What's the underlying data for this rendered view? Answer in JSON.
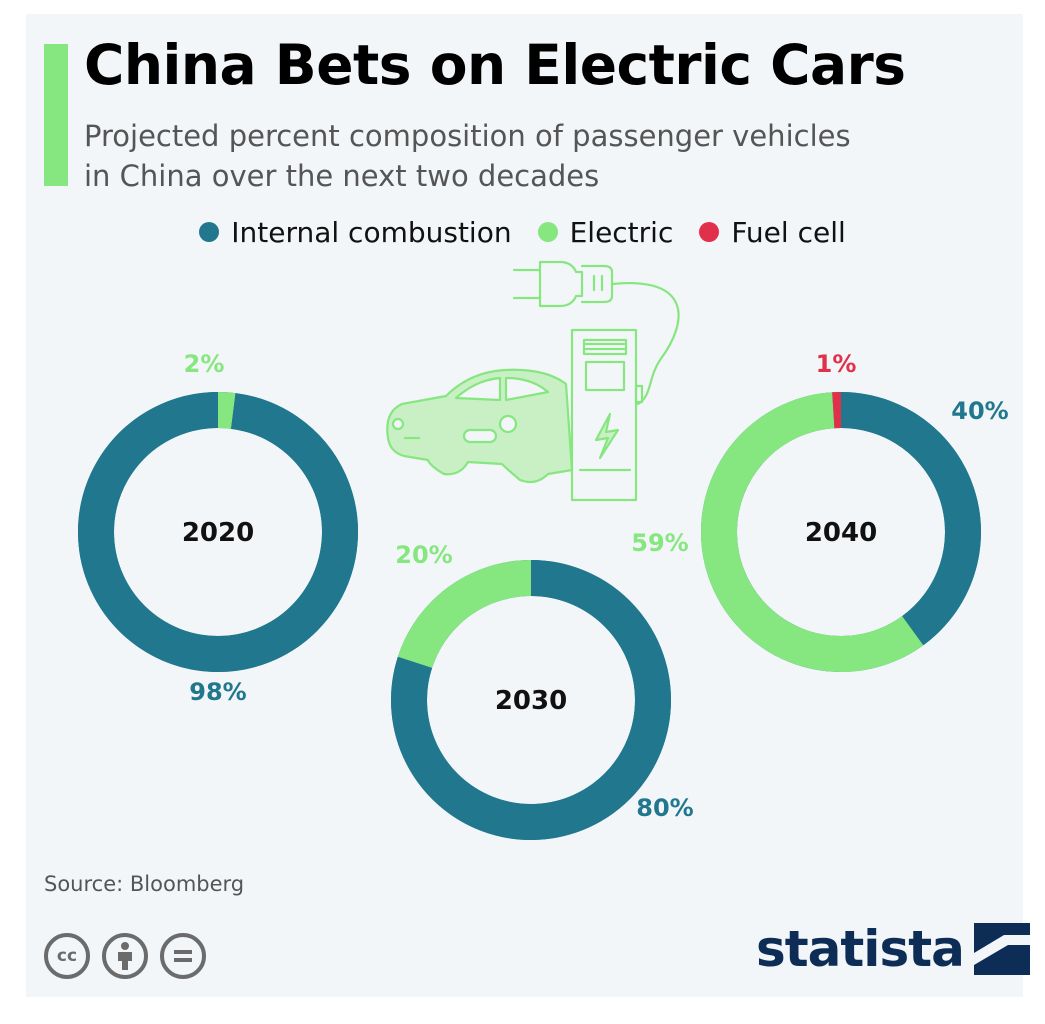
{
  "header": {
    "title": "China Bets on Electric Cars",
    "subtitle": "Projected percent composition of passenger vehicles in China over the next two decades"
  },
  "legend": [
    {
      "label": "Internal combustion",
      "color": "#21788e"
    },
    {
      "label": "Electric",
      "color": "#86e67f"
    },
    {
      "label": "Fuel cell",
      "color": "#e1314a"
    }
  ],
  "chart_data": [
    {
      "type": "pie",
      "title": "2020",
      "series": [
        {
          "name": "Internal combustion",
          "value": 98,
          "label": "98%"
        },
        {
          "name": "Electric",
          "value": 2,
          "label": "2%"
        }
      ]
    },
    {
      "type": "pie",
      "title": "2030",
      "series": [
        {
          "name": "Internal combustion",
          "value": 80,
          "label": "80%"
        },
        {
          "name": "Electric",
          "value": 20,
          "label": "20%"
        }
      ]
    },
    {
      "type": "pie",
      "title": "2040",
      "series": [
        {
          "name": "Internal combustion",
          "value": 40,
          "label": "40%"
        },
        {
          "name": "Electric",
          "value": 59,
          "label": "59%"
        },
        {
          "name": "Fuel cell",
          "value": 1,
          "label": "1%"
        }
      ]
    }
  ],
  "footer": {
    "source": "Source: Bloomberg",
    "brand": "statista",
    "license_icons": [
      "creative-commons-icon",
      "attribution-icon",
      "no-derivatives-icon"
    ]
  },
  "illustration": {
    "icon": "electric-car-charging-icon",
    "color": "#86e67f"
  }
}
